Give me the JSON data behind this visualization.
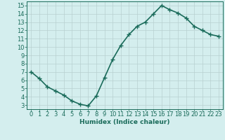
{
  "x": [
    0,
    1,
    2,
    3,
    4,
    5,
    6,
    7,
    8,
    9,
    10,
    11,
    12,
    13,
    14,
    15,
    16,
    17,
    18,
    19,
    20,
    21,
    22,
    23
  ],
  "y": [
    7.0,
    6.2,
    5.2,
    4.7,
    4.2,
    3.5,
    3.1,
    2.9,
    4.1,
    6.3,
    8.5,
    10.2,
    11.5,
    12.5,
    13.0,
    14.0,
    15.0,
    14.5,
    14.1,
    13.5,
    12.5,
    12.0,
    11.5,
    11.3
  ],
  "line_color": "#1a6b5a",
  "marker": "+",
  "marker_size": 4,
  "bg_color": "#d4eeee",
  "grid_color": "#b8d0d0",
  "axis_color": "#1a6b5a",
  "xlabel": "Humidex (Indice chaleur)",
  "xlim": [
    -0.5,
    23.5
  ],
  "ylim": [
    2.5,
    15.5
  ],
  "yticks": [
    3,
    4,
    5,
    6,
    7,
    8,
    9,
    10,
    11,
    12,
    13,
    14,
    15
  ],
  "xticks": [
    0,
    1,
    2,
    3,
    4,
    5,
    6,
    7,
    8,
    9,
    10,
    11,
    12,
    13,
    14,
    15,
    16,
    17,
    18,
    19,
    20,
    21,
    22,
    23
  ],
  "xlabel_fontsize": 6.5,
  "tick_fontsize": 6,
  "linewidth": 1.2
}
